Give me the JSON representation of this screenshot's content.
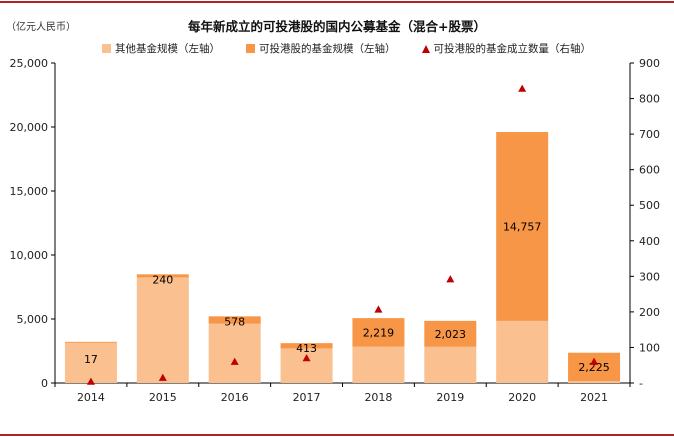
{
  "unit_label": "（亿元人民币）",
  "chart_data": {
    "type": "bar",
    "title": "每年新成立的可投港股的国内公募基金（混合+股票）",
    "categories": [
      "2014",
      "2015",
      "2016",
      "2017",
      "2018",
      "2019",
      "2020",
      "2021"
    ],
    "series": [
      {
        "name": "其他基金规模（左轴）",
        "axis": "left",
        "color": "#fac090",
        "values": [
          3200,
          8250,
          4630,
          2700,
          2850,
          2830,
          4850,
          140
        ]
      },
      {
        "name": "可投港股的基金规模（左轴）",
        "axis": "left",
        "color": "#f79646",
        "values": [
          17,
          240,
          578,
          413,
          2219,
          2023,
          14757,
          2225
        ],
        "labels": [
          "17",
          "240",
          "578",
          "413",
          "2,219",
          "2,023",
          "14,757",
          "2,225"
        ]
      },
      {
        "name": "可投港股的基金成立数量（右轴）",
        "axis": "right",
        "type": "scatter",
        "color": "#c00000",
        "values": [
          4,
          15,
          60,
          70,
          207,
          292,
          828,
          60
        ]
      }
    ],
    "y_left": {
      "ylim": [
        0,
        25000
      ],
      "ticks": [
        0,
        5000,
        10000,
        15000,
        20000,
        25000
      ],
      "tick_labels": [
        "0",
        "5,000",
        "10,000",
        "15,000",
        "20,000",
        "25,000"
      ]
    },
    "y_right": {
      "ylim": [
        0,
        900
      ],
      "ticks": [
        0,
        100,
        200,
        300,
        400,
        500,
        600,
        700,
        800,
        900
      ],
      "tick_labels": [
        "-",
        "100",
        "200",
        "300",
        "400",
        "500",
        "600",
        "700",
        "800",
        "900"
      ]
    },
    "legend": "top"
  }
}
